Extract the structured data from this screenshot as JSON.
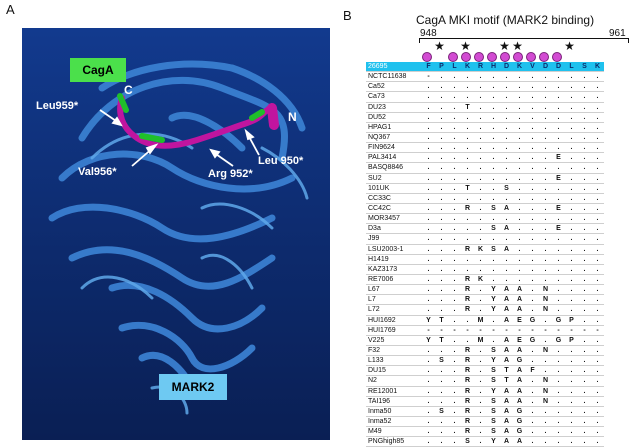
{
  "panel_a": {
    "letter": "A",
    "cagA_label": "CagA",
    "mark2_label": "MARK2",
    "terminus_c": "C",
    "terminus_n": "N",
    "residues": {
      "leu959": "Leu959*",
      "val956": "Val956*",
      "arg952": "Arg 952*",
      "leu950": "Leu 950*"
    },
    "colors": {
      "background": "#0d2a6c",
      "ribbon": "#3a7fd0",
      "cagA_peptide": "#c0159f",
      "highlight": "#1fbf2a"
    }
  },
  "panel_b": {
    "letter": "B",
    "title": "CagA MKI motif (MARK2 binding)",
    "range_start": "948",
    "range_end": "961",
    "star_columns": [
      1,
      3,
      6,
      7,
      11
    ],
    "dot_columns": [
      0,
      2,
      3,
      4,
      5,
      6,
      7,
      8,
      9,
      10
    ],
    "reference": {
      "name": "26695",
      "residues": [
        "F",
        "P",
        "L",
        "K",
        "R",
        "H",
        "D",
        "K",
        "V",
        "D",
        "D",
        "L",
        "S",
        "K"
      ]
    },
    "rows": [
      {
        "name": "NCTC11638",
        "residues": [
          "-",
          ".",
          ".",
          ".",
          ".",
          ".",
          ".",
          ".",
          ".",
          ".",
          ".",
          ".",
          ".",
          "."
        ]
      },
      {
        "name": "Ca52",
        "residues": [
          ".",
          ".",
          ".",
          ".",
          ".",
          ".",
          ".",
          ".",
          ".",
          ".",
          ".",
          ".",
          ".",
          "."
        ]
      },
      {
        "name": "Ca73",
        "residues": [
          ".",
          ".",
          ".",
          ".",
          ".",
          ".",
          ".",
          ".",
          ".",
          ".",
          ".",
          ".",
          ".",
          "."
        ]
      },
      {
        "name": "DU23",
        "residues": [
          ".",
          ".",
          ".",
          "T",
          ".",
          ".",
          ".",
          ".",
          ".",
          ".",
          ".",
          ".",
          ".",
          "."
        ]
      },
      {
        "name": "DU52",
        "residues": [
          ".",
          ".",
          ".",
          ".",
          ".",
          ".",
          ".",
          ".",
          ".",
          ".",
          ".",
          ".",
          ".",
          "."
        ]
      },
      {
        "name": "HPAG1",
        "residues": [
          ".",
          ".",
          ".",
          ".",
          ".",
          ".",
          ".",
          ".",
          ".",
          ".",
          ".",
          ".",
          ".",
          "."
        ]
      },
      {
        "name": "NQ367",
        "residues": [
          ".",
          ".",
          ".",
          ".",
          ".",
          ".",
          ".",
          ".",
          ".",
          ".",
          ".",
          ".",
          ".",
          "."
        ]
      },
      {
        "name": "FIN9624",
        "residues": [
          ".",
          ".",
          ".",
          ".",
          ".",
          ".",
          ".",
          ".",
          ".",
          ".",
          ".",
          ".",
          ".",
          "."
        ]
      },
      {
        "name": "PAL3414",
        "residues": [
          ".",
          ".",
          ".",
          ".",
          ".",
          ".",
          ".",
          ".",
          ".",
          ".",
          "E",
          ".",
          ".",
          "."
        ]
      },
      {
        "name": "BASQ8846",
        "residues": [
          ".",
          ".",
          ".",
          ".",
          ".",
          ".",
          ".",
          ".",
          ".",
          ".",
          ".",
          ".",
          ".",
          "."
        ]
      },
      {
        "name": "SU2",
        "residues": [
          ".",
          ".",
          ".",
          ".",
          ".",
          ".",
          ".",
          ".",
          ".",
          ".",
          "E",
          ".",
          ".",
          "."
        ]
      },
      {
        "name": "101UK",
        "residues": [
          ".",
          ".",
          ".",
          "T",
          ".",
          ".",
          "S",
          ".",
          ".",
          ".",
          ".",
          ".",
          ".",
          "."
        ]
      },
      {
        "name": "CC33C",
        "residues": [
          ".",
          ".",
          ".",
          ".",
          ".",
          ".",
          ".",
          ".",
          ".",
          ".",
          ".",
          ".",
          ".",
          "."
        ]
      },
      {
        "name": "CC42C",
        "residues": [
          ".",
          ".",
          ".",
          "R",
          ".",
          "S",
          "A",
          ".",
          ".",
          ".",
          "E",
          ".",
          ".",
          "."
        ]
      },
      {
        "name": "MOR3457",
        "residues": [
          ".",
          ".",
          ".",
          ".",
          ".",
          ".",
          ".",
          ".",
          ".",
          ".",
          ".",
          ".",
          ".",
          "."
        ]
      },
      {
        "name": "D3a",
        "residues": [
          ".",
          ".",
          ".",
          ".",
          ".",
          "S",
          "A",
          ".",
          ".",
          ".",
          "E",
          ".",
          ".",
          "."
        ]
      },
      {
        "name": "J99",
        "residues": [
          ".",
          ".",
          ".",
          ".",
          ".",
          ".",
          ".",
          ".",
          ".",
          ".",
          ".",
          ".",
          ".",
          "."
        ]
      },
      {
        "name": "LSU2003-1",
        "residues": [
          ".",
          ".",
          ".",
          "R",
          "K",
          "S",
          "A",
          ".",
          ".",
          ".",
          ".",
          ".",
          ".",
          "."
        ]
      },
      {
        "name": "H1419",
        "residues": [
          ".",
          ".",
          ".",
          ".",
          ".",
          ".",
          ".",
          ".",
          ".",
          ".",
          ".",
          ".",
          ".",
          "."
        ]
      },
      {
        "name": "KAZ3173",
        "residues": [
          ".",
          ".",
          ".",
          ".",
          ".",
          ".",
          ".",
          ".",
          ".",
          ".",
          ".",
          ".",
          ".",
          "."
        ]
      },
      {
        "name": "RE7006",
        "residues": [
          ".",
          ".",
          ".",
          "R",
          "K",
          ".",
          ".",
          ".",
          ".",
          ".",
          ".",
          ".",
          ".",
          "."
        ]
      },
      {
        "name": "L67",
        "residues": [
          ".",
          ".",
          ".",
          "R",
          ".",
          "Y",
          "A",
          "A",
          ".",
          "N",
          ".",
          ".",
          ".",
          "."
        ]
      },
      {
        "name": "L7",
        "residues": [
          ".",
          ".",
          ".",
          "R",
          ".",
          "Y",
          "A",
          "A",
          ".",
          "N",
          ".",
          ".",
          ".",
          "."
        ]
      },
      {
        "name": "L72",
        "residues": [
          ".",
          ".",
          ".",
          "R",
          ".",
          "Y",
          "A",
          "A",
          ".",
          "N",
          ".",
          ".",
          ".",
          "."
        ]
      },
      {
        "name": "HUI1692",
        "residues": [
          "Y",
          "T",
          ".",
          ".",
          "M",
          ".",
          "A",
          "E",
          "G",
          ".",
          "G",
          "P",
          ".",
          "."
        ]
      },
      {
        "name": "HUI1769",
        "residues": [
          "-",
          "-",
          "-",
          "-",
          "-",
          "-",
          "-",
          "-",
          "-",
          "-",
          "-",
          "-",
          "-",
          "-"
        ]
      },
      {
        "name": "V225",
        "residues": [
          "Y",
          "T",
          ".",
          ".",
          "M",
          ".",
          "A",
          "E",
          "G",
          ".",
          "G",
          "P",
          ".",
          "."
        ]
      },
      {
        "name": "F32",
        "residues": [
          ".",
          ".",
          ".",
          "R",
          ".",
          "S",
          "A",
          "A",
          ".",
          "N",
          ".",
          ".",
          ".",
          "."
        ]
      },
      {
        "name": "L133",
        "residues": [
          ".",
          "S",
          ".",
          "R",
          ".",
          "Y",
          "A",
          "G",
          ".",
          ".",
          ".",
          ".",
          ".",
          "."
        ]
      },
      {
        "name": "DU15",
        "residues": [
          ".",
          ".",
          ".",
          "R",
          ".",
          "S",
          "T",
          "A",
          "F",
          ".",
          ".",
          ".",
          ".",
          "."
        ]
      },
      {
        "name": "N2",
        "residues": [
          ".",
          ".",
          ".",
          "R",
          ".",
          "S",
          "T",
          "A",
          ".",
          "N",
          ".",
          ".",
          ".",
          "."
        ]
      },
      {
        "name": "RE12001",
        "residues": [
          ".",
          ".",
          ".",
          "R",
          ".",
          "Y",
          "A",
          "A",
          ".",
          "N",
          ".",
          ".",
          ".",
          "."
        ]
      },
      {
        "name": "TAI196",
        "residues": [
          ".",
          ".",
          ".",
          "R",
          ".",
          "S",
          "A",
          "A",
          ".",
          "N",
          ".",
          ".",
          ".",
          "."
        ]
      },
      {
        "name": "Inma50",
        "residues": [
          ".",
          "S",
          ".",
          "R",
          ".",
          "S",
          "A",
          "G",
          ".",
          ".",
          ".",
          ".",
          ".",
          "."
        ]
      },
      {
        "name": "Inma52",
        "residues": [
          ".",
          ".",
          ".",
          "R",
          ".",
          "S",
          "A",
          "G",
          ".",
          ".",
          ".",
          ".",
          ".",
          "."
        ]
      },
      {
        "name": "M49",
        "residues": [
          ".",
          ".",
          ".",
          "R",
          ".",
          "S",
          "A",
          "G",
          ".",
          ".",
          ".",
          ".",
          ".",
          "."
        ]
      },
      {
        "name": "PNGhigh85",
        "residues": [
          ".",
          ".",
          ".",
          "S",
          ".",
          "Y",
          "A",
          "A",
          ".",
          ".",
          ".",
          ".",
          ".",
          "."
        ]
      }
    ]
  }
}
